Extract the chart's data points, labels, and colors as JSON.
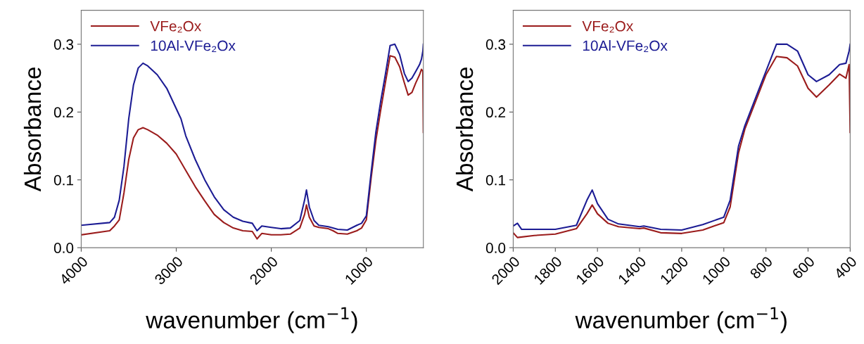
{
  "chart_data": [
    {
      "type": "line",
      "xlabel": "wavenumber (cm$^{−1}$)",
      "ylabel": "Absorbance",
      "xlim": [
        4000,
        400
      ],
      "ylim": [
        0,
        0.35
      ],
      "xticks": [
        4000,
        3000,
        2000,
        1000
      ],
      "yticks": [
        {
          "value": 0,
          "label": "0.0"
        },
        0.1,
        0.2,
        0.3
      ],
      "legend": "top left",
      "grid": false,
      "series": [
        {
          "name": "VFe₂Ox",
          "color": "#9b1c1c",
          "x": [
            4000,
            3700,
            3650,
            3600,
            3550,
            3500,
            3450,
            3400,
            3350,
            3300,
            3200,
            3100,
            3000,
            2900,
            2800,
            2700,
            2600,
            2500,
            2400,
            2300,
            2200,
            2150,
            2100,
            2000,
            1900,
            1800,
            1700,
            1650,
            1630,
            1600,
            1550,
            1500,
            1400,
            1350,
            1300,
            1200,
            1100,
            1050,
            1000,
            950,
            900,
            850,
            800,
            750,
            700,
            650,
            600,
            560,
            520,
            480,
            440,
            420,
            405,
            400
          ],
          "values": [
            0.019,
            0.025,
            0.032,
            0.041,
            0.081,
            0.13,
            0.162,
            0.174,
            0.177,
            0.174,
            0.166,
            0.154,
            0.138,
            0.114,
            0.09,
            0.069,
            0.049,
            0.037,
            0.029,
            0.025,
            0.024,
            0.013,
            0.021,
            0.019,
            0.019,
            0.02,
            0.029,
            0.049,
            0.063,
            0.045,
            0.032,
            0.03,
            0.028,
            0.025,
            0.021,
            0.02,
            0.025,
            0.029,
            0.041,
            0.102,
            0.158,
            0.202,
            0.243,
            0.283,
            0.281,
            0.267,
            0.243,
            0.225,
            0.229,
            0.243,
            0.255,
            0.263,
            0.26,
            0.17
          ]
        },
        {
          "name": "10Al-VFe₂Ox",
          "color": "#1c1c94",
          "x": [
            4000,
            3700,
            3650,
            3600,
            3550,
            3500,
            3450,
            3400,
            3350,
            3300,
            3200,
            3100,
            3000,
            2950,
            2900,
            2800,
            2700,
            2600,
            2500,
            2400,
            2300,
            2200,
            2150,
            2100,
            2000,
            1900,
            1800,
            1700,
            1650,
            1630,
            1600,
            1550,
            1500,
            1400,
            1300,
            1200,
            1100,
            1050,
            1000,
            950,
            900,
            850,
            800,
            750,
            700,
            650,
            600,
            560,
            520,
            480,
            440,
            420,
            405,
            400
          ],
          "values": [
            0.033,
            0.037,
            0.045,
            0.07,
            0.12,
            0.19,
            0.24,
            0.265,
            0.272,
            0.268,
            0.255,
            0.235,
            0.205,
            0.19,
            0.165,
            0.13,
            0.1,
            0.075,
            0.056,
            0.045,
            0.039,
            0.036,
            0.025,
            0.032,
            0.03,
            0.028,
            0.029,
            0.04,
            0.07,
            0.085,
            0.06,
            0.04,
            0.033,
            0.031,
            0.027,
            0.026,
            0.033,
            0.036,
            0.047,
            0.11,
            0.17,
            0.215,
            0.255,
            0.298,
            0.3,
            0.285,
            0.257,
            0.245,
            0.25,
            0.26,
            0.27,
            0.278,
            0.29,
            0.3
          ]
        }
      ]
    },
    {
      "type": "line",
      "xlabel": "wavenumber (cm$^{−1}$)",
      "ylabel": "Absorbance",
      "xlim": [
        2000,
        400
      ],
      "ylim": [
        0,
        0.35
      ],
      "xticks": [
        2000,
        1800,
        1600,
        1400,
        1200,
        1000,
        800,
        600,
        400
      ],
      "yticks": [
        {
          "value": 0,
          "label": "0.0"
        },
        0.1,
        0.2,
        0.3
      ],
      "legend": "top left",
      "grid": false,
      "series": [
        {
          "name": "VFe₂Ox",
          "color": "#9b1c1c",
          "x": [
            2000,
            1980,
            1900,
            1800,
            1700,
            1650,
            1625,
            1600,
            1550,
            1500,
            1400,
            1380,
            1300,
            1200,
            1100,
            1000,
            970,
            950,
            930,
            900,
            850,
            800,
            750,
            700,
            650,
            600,
            560,
            500,
            450,
            420,
            405,
            400
          ],
          "values": [
            0.022,
            0.015,
            0.018,
            0.02,
            0.028,
            0.05,
            0.063,
            0.05,
            0.036,
            0.031,
            0.028,
            0.029,
            0.022,
            0.021,
            0.026,
            0.037,
            0.06,
            0.1,
            0.14,
            0.175,
            0.215,
            0.255,
            0.282,
            0.28,
            0.268,
            0.235,
            0.222,
            0.24,
            0.256,
            0.25,
            0.27,
            0.17
          ]
        },
        {
          "name": "10Al-VFe₂Ox",
          "color": "#1c1c94",
          "x": [
            2000,
            1980,
            1960,
            1900,
            1800,
            1700,
            1650,
            1625,
            1600,
            1550,
            1500,
            1400,
            1380,
            1300,
            1200,
            1100,
            1000,
            970,
            950,
            930,
            900,
            850,
            800,
            750,
            700,
            650,
            600,
            560,
            500,
            450,
            420,
            405,
            400
          ],
          "values": [
            0.032,
            0.036,
            0.027,
            0.027,
            0.027,
            0.033,
            0.07,
            0.085,
            0.065,
            0.042,
            0.035,
            0.031,
            0.032,
            0.027,
            0.026,
            0.034,
            0.045,
            0.07,
            0.11,
            0.15,
            0.18,
            0.22,
            0.26,
            0.3,
            0.3,
            0.29,
            0.255,
            0.245,
            0.255,
            0.27,
            0.272,
            0.29,
            0.3
          ]
        }
      ]
    }
  ]
}
